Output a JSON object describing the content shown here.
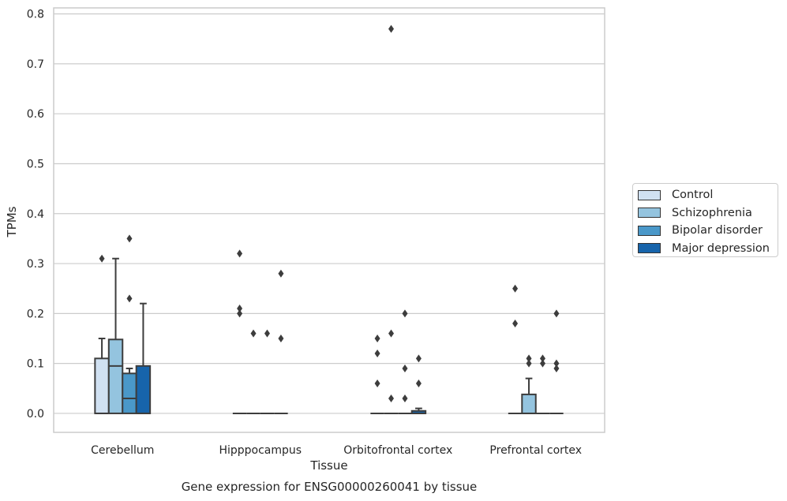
{
  "chart_data": {
    "type": "box",
    "title": "",
    "caption": "Gene expression for ENSG00000260041 by tissue",
    "xlabel": "Tissue",
    "ylabel": "TPMs",
    "ylim": [
      -0.038,
      0.812
    ],
    "yticks": [
      0.0,
      0.1,
      0.2,
      0.3,
      0.4,
      0.5,
      0.6,
      0.7,
      0.8
    ],
    "ytick_labels": [
      "0.0",
      "0.1",
      "0.2",
      "0.3",
      "0.4",
      "0.5",
      "0.6",
      "0.7",
      "0.8"
    ],
    "grid": true,
    "legend_position": "right",
    "categories": [
      "Cerebellum",
      "Hipppocampus",
      "Orbitofrontal cortex",
      "Prefrontal cortex"
    ],
    "series": [
      {
        "name": "Control",
        "color": "#d0e1f2",
        "boxes": [
          {
            "q1": 0.0,
            "median": 0.0,
            "q3": 0.11,
            "whisker_low": 0.0,
            "whisker_high": 0.15,
            "outliers": [
              0.31
            ]
          },
          {
            "q1": 0.0,
            "median": 0.0,
            "q3": 0.0,
            "whisker_low": 0.0,
            "whisker_high": 0.0,
            "outliers": [
              0.32,
              0.21,
              0.2
            ]
          },
          {
            "q1": 0.0,
            "median": 0.0,
            "q3": 0.0,
            "whisker_low": 0.0,
            "whisker_high": 0.0,
            "outliers": [
              0.15,
              0.12,
              0.06
            ]
          },
          {
            "q1": 0.0,
            "median": 0.0,
            "q3": 0.0,
            "whisker_low": 0.0,
            "whisker_high": 0.0,
            "outliers": [
              0.25,
              0.18
            ]
          }
        ]
      },
      {
        "name": "Schizophrenia",
        "color": "#94c4df",
        "boxes": [
          {
            "q1": 0.0,
            "median": 0.095,
            "q3": 0.148,
            "whisker_low": 0.0,
            "whisker_high": 0.31,
            "outliers": []
          },
          {
            "q1": 0.0,
            "median": 0.0,
            "q3": 0.0,
            "whisker_low": 0.0,
            "whisker_high": 0.0,
            "outliers": [
              0.16
            ]
          },
          {
            "q1": 0.0,
            "median": 0.0,
            "q3": 0.0,
            "whisker_low": 0.0,
            "whisker_high": 0.0,
            "outliers": [
              0.77,
              0.16,
              0.03
            ]
          },
          {
            "q1": 0.0,
            "median": 0.0,
            "q3": 0.038,
            "whisker_low": 0.0,
            "whisker_high": 0.07,
            "outliers": [
              0.11,
              0.1
            ]
          }
        ]
      },
      {
        "name": "Bipolar disorder",
        "color": "#4a98c9",
        "boxes": [
          {
            "q1": 0.0,
            "median": 0.03,
            "q3": 0.08,
            "whisker_low": 0.0,
            "whisker_high": 0.09,
            "outliers": [
              0.35,
              0.23
            ]
          },
          {
            "q1": 0.0,
            "median": 0.0,
            "q3": 0.0,
            "whisker_low": 0.0,
            "whisker_high": 0.0,
            "outliers": [
              0.16
            ]
          },
          {
            "q1": 0.0,
            "median": 0.0,
            "q3": 0.0,
            "whisker_low": 0.0,
            "whisker_high": 0.0,
            "outliers": [
              0.2,
              0.09,
              0.03
            ]
          },
          {
            "q1": 0.0,
            "median": 0.0,
            "q3": 0.0,
            "whisker_low": 0.0,
            "whisker_high": 0.0,
            "outliers": [
              0.11,
              0.1
            ]
          }
        ]
      },
      {
        "name": "Major depression",
        "color": "#1764ab",
        "boxes": [
          {
            "q1": 0.0,
            "median": 0.0,
            "q3": 0.095,
            "whisker_low": 0.0,
            "whisker_high": 0.22,
            "outliers": []
          },
          {
            "q1": 0.0,
            "median": 0.0,
            "q3": 0.0,
            "whisker_low": 0.0,
            "whisker_high": 0.0,
            "outliers": [
              0.28,
              0.15
            ]
          },
          {
            "q1": 0.0,
            "median": 0.0,
            "q3": 0.005,
            "whisker_low": 0.0,
            "whisker_high": 0.01,
            "outliers": [
              0.11,
              0.06
            ]
          },
          {
            "q1": 0.0,
            "median": 0.0,
            "q3": 0.0,
            "whisker_low": 0.0,
            "whisker_high": 0.0,
            "outliers": [
              0.2,
              0.1,
              0.09
            ]
          }
        ]
      }
    ]
  }
}
